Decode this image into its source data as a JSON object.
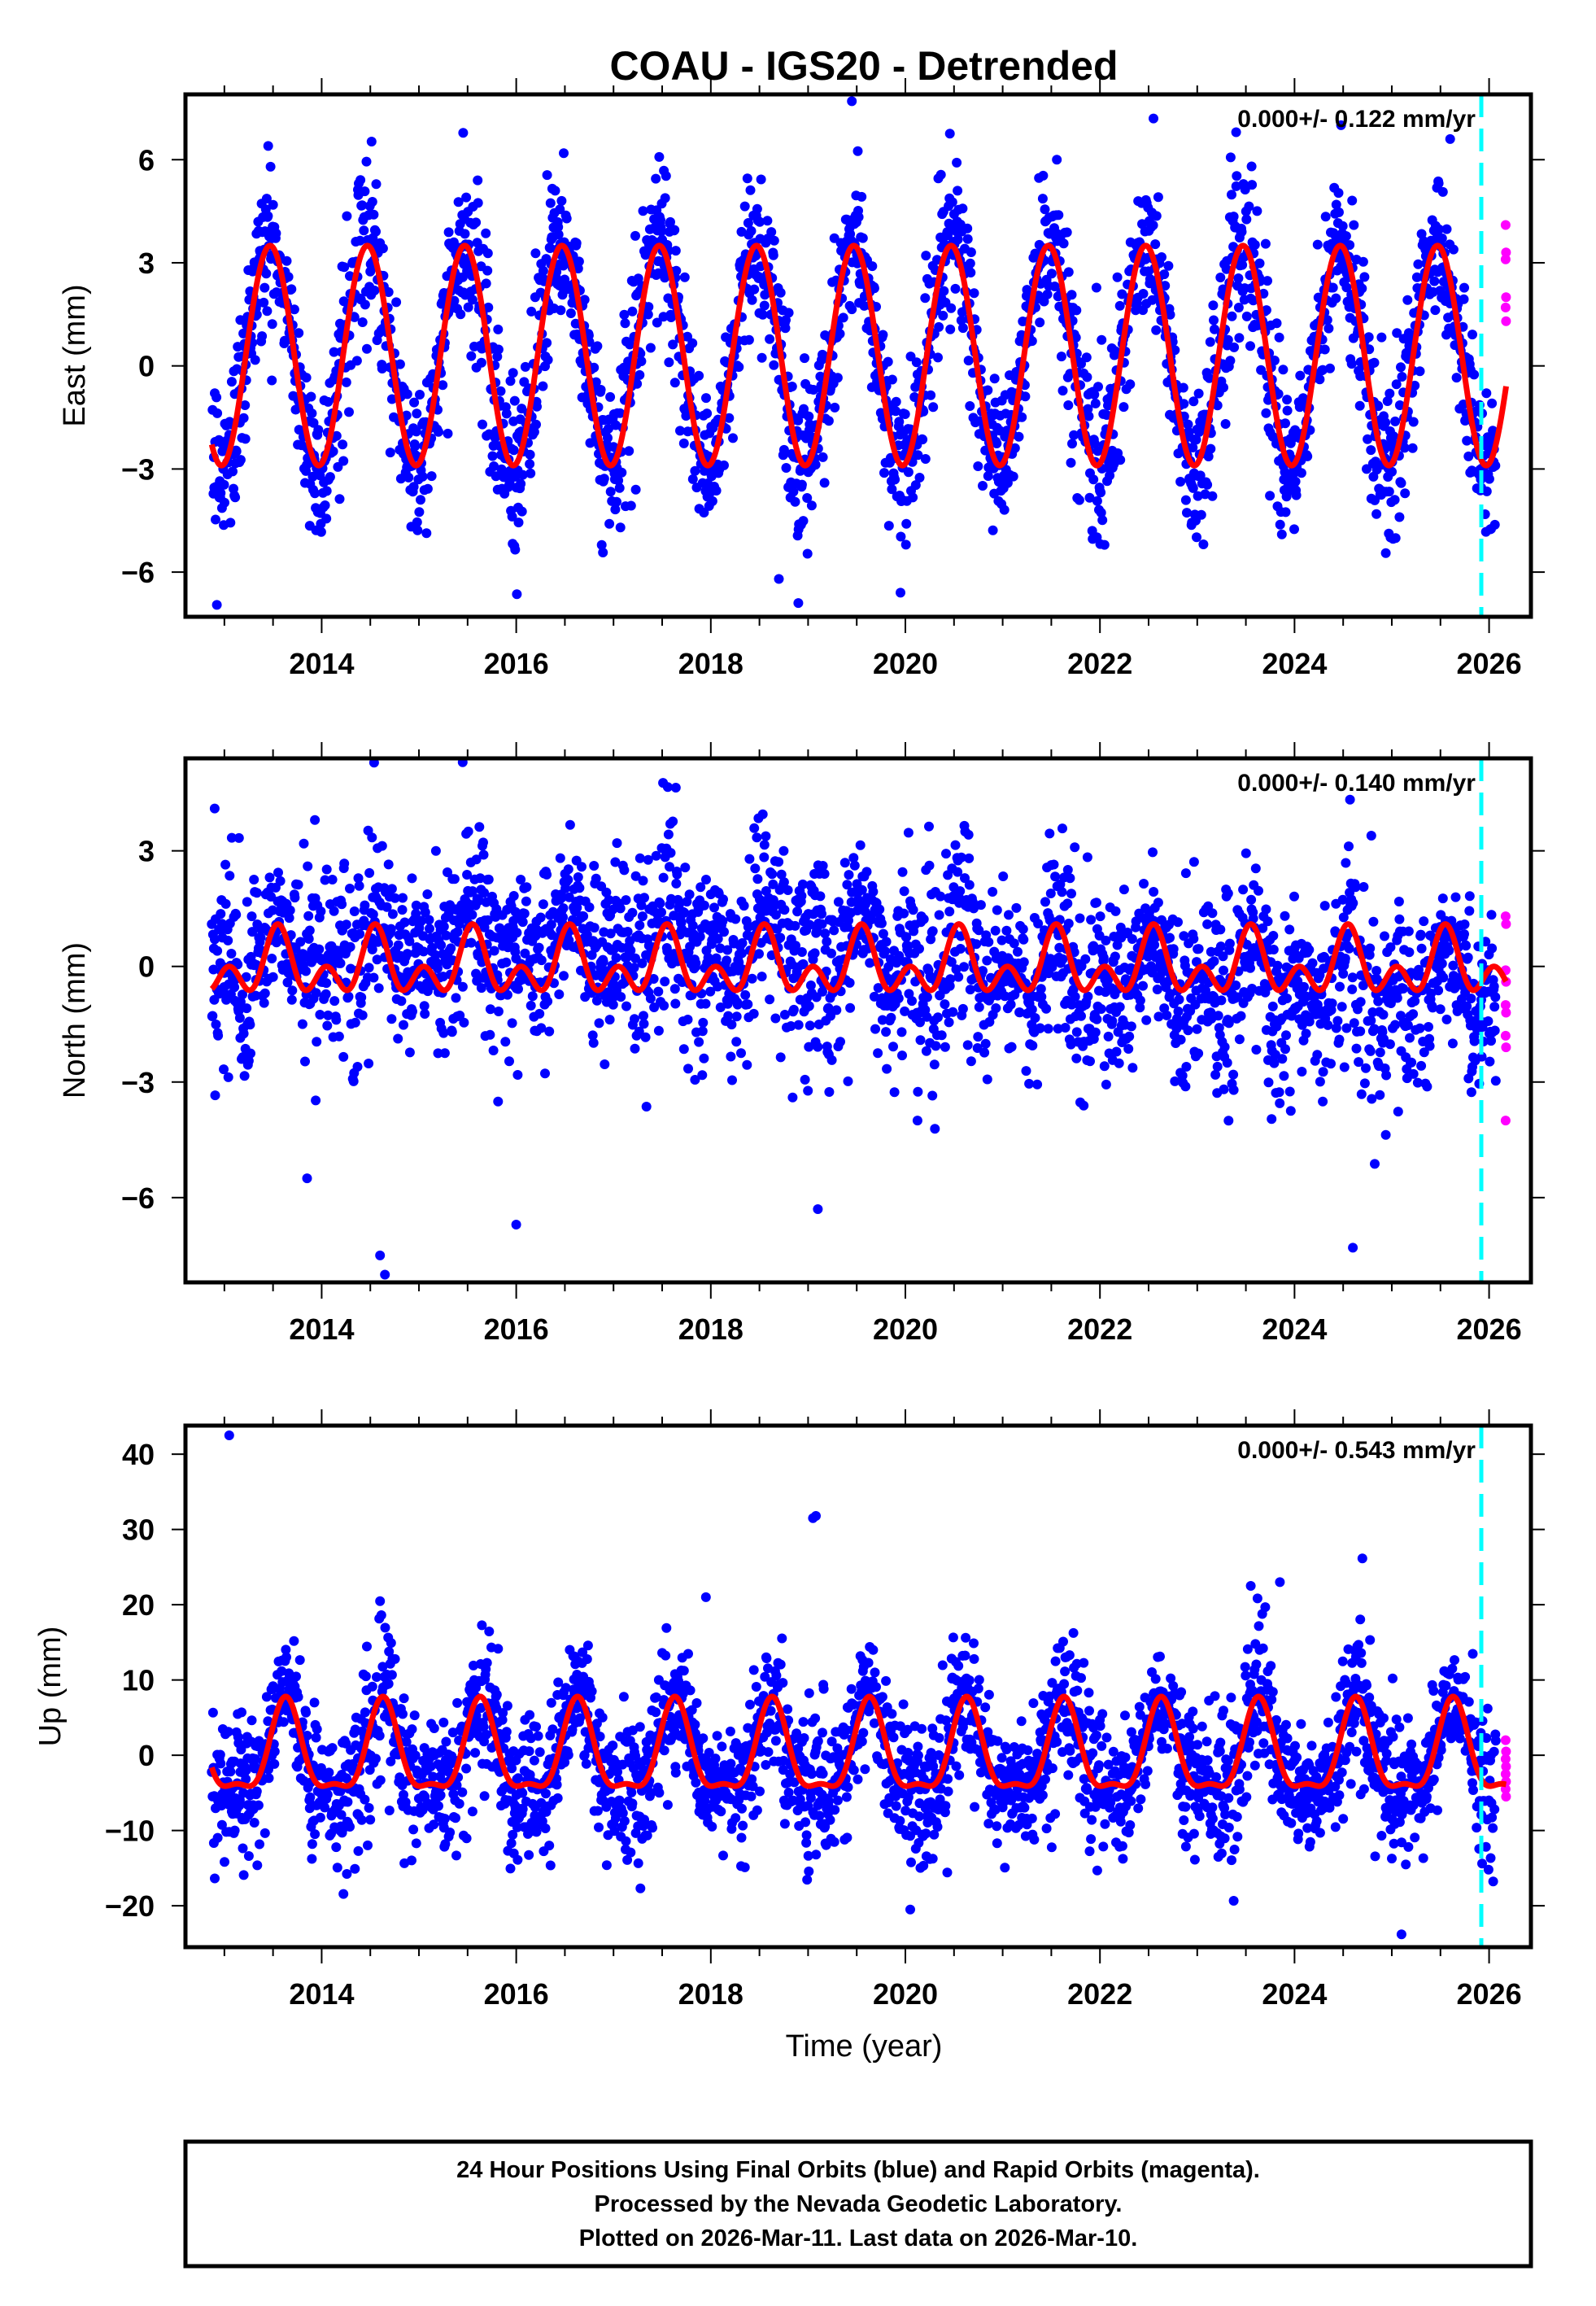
{
  "chart_data": {
    "type": "scatter",
    "title": "COAU - IGS20 - Detrended",
    "xlabel": "Time (year)",
    "xlim": [
      2012.6,
      2026.43
    ],
    "x_ticks": [
      2014,
      2016,
      2018,
      2020,
      2022,
      2024,
      2026
    ],
    "x_tick_labels": [
      "2014",
      "2016",
      "2018",
      "2020",
      "2022",
      "2024",
      "2026"
    ],
    "x_minor_step": 0.5,
    "grid": false,
    "rapid_orbit_start": 2025.92,
    "colors": {
      "final_orbits": "#0000ff",
      "rapid_orbits": "#ff00ff",
      "model": "#ff0000",
      "rapid_marker_line": "#00ffff",
      "frame": "#000000"
    },
    "panels": [
      {
        "name": "east",
        "ylabel": "East (mm)",
        "ylim": [
          -7.3,
          7.9
        ],
        "y_ticks": [
          -6,
          -3,
          0,
          3,
          6
        ],
        "y_tick_labels": [
          "−6",
          "−3",
          "0",
          "3",
          "6"
        ],
        "rate_text": "0.000+/- 0.122 mm/yr",
        "model": {
          "offset": 0.3,
          "annual_amp": 3.2,
          "annual_peak": 0.47,
          "semiannual_amp": 0.0,
          "semiannual_peak": 0.0
        },
        "scatter_sd": 1.1,
        "rapid_values": [
          4.1,
          3.3,
          3.1,
          2.0,
          1.7,
          1.3
        ],
        "outliers": [
          [
            2019.45,
            7.7
          ],
          [
            2022.55,
            7.2
          ],
          [
            2023.4,
            6.8
          ],
          [
            2025.6,
            6.6
          ],
          [
            2013.45,
            6.4
          ],
          [
            2018.9,
            -6.9
          ],
          [
            2019.95,
            -6.6
          ],
          [
            2018.7,
            -6.2
          ]
        ]
      },
      {
        "name": "north",
        "ylabel": "North (mm)",
        "ylim": [
          -8.2,
          5.4
        ],
        "y_ticks": [
          -6,
          -3,
          0,
          3
        ],
        "y_tick_labels": [
          "−6",
          "−3",
          "0",
          "3"
        ],
        "rate_text": "0.000+/- 0.140 mm/yr",
        "model": {
          "offset": 0.0,
          "annual_amp": 0.55,
          "annual_peak": 0.55,
          "semiannual_amp": 0.55,
          "semiannual_peak": 0.05
        },
        "scatter_sd": 1.1,
        "rapid_values": [
          1.3,
          1.1,
          -0.1,
          -0.4,
          -1.0,
          -1.2,
          -1.8,
          -2.1,
          -4.0
        ],
        "outliers": [
          [
            2015.45,
            5.3
          ],
          [
            2012.9,
            4.1
          ],
          [
            2014.6,
            -7.5
          ],
          [
            2014.65,
            -8.0
          ],
          [
            2016.0,
            -6.7
          ],
          [
            2019.1,
            -6.3
          ],
          [
            2024.6,
            -7.3
          ],
          [
            2013.85,
            -5.5
          ]
        ]
      },
      {
        "name": "up",
        "ylabel": "Up (mm)",
        "ylim": [
          -25.5,
          43.8
        ],
        "y_ticks": [
          -20,
          -10,
          0,
          10,
          20,
          30,
          40
        ],
        "y_tick_labels": [
          "−20",
          "−10",
          "0",
          "10",
          "20",
          "30",
          "40"
        ],
        "rate_text": "0.000+/- 0.543 mm/yr",
        "model": {
          "offset": 0.0,
          "annual_amp": 5.8,
          "annual_peak": 0.63,
          "semiannual_amp": 2.0,
          "semiannual_peak": 0.13
        },
        "scatter_sd": 4.2,
        "rapid_values": [
          2.0,
          0.5,
          -0.5,
          -1.5,
          -2.5,
          -3.5,
          -4.5,
          -5.5
        ],
        "outliers": [
          [
            2013.05,
            42.5
          ],
          [
            2019.05,
            31.5
          ],
          [
            2019.08,
            31.8
          ],
          [
            2017.95,
            21.0
          ],
          [
            2023.55,
            22.5
          ],
          [
            2023.85,
            23.0
          ],
          [
            2025.1,
            -23.8
          ],
          [
            2020.05,
            -20.5
          ]
        ]
      }
    ]
  },
  "footer": {
    "line1": "24 Hour Positions Using Final Orbits (blue) and Rapid Orbits (magenta).",
    "line2": "Processed by the Nevada Geodetic Laboratory.",
    "line3": "Plotted on 2026-Mar-11. Last data on 2026-Mar-10."
  }
}
